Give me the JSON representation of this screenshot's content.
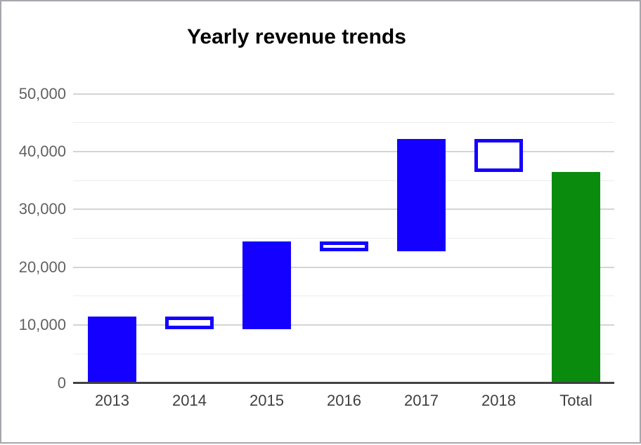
{
  "frame": {
    "border_color": "#a7a7ad",
    "background": "#ffffff"
  },
  "chart_data": {
    "type": "bar",
    "subtype": "waterfall",
    "title": "Yearly revenue trends",
    "title_color": "#000000",
    "xlabel": "",
    "ylabel": "",
    "categories": [
      "2013",
      "2014",
      "2015",
      "2016",
      "2017",
      "2018",
      "Total"
    ],
    "bars": [
      {
        "label": "2013",
        "start": 0,
        "end": 11500,
        "delta": 11500,
        "kind": "increase"
      },
      {
        "label": "2014",
        "start": 11500,
        "end": 9300,
        "delta": -2200,
        "kind": "decrease"
      },
      {
        "label": "2015",
        "start": 9300,
        "end": 24500,
        "delta": 15200,
        "kind": "increase"
      },
      {
        "label": "2016",
        "start": 24500,
        "end": 22800,
        "delta": -1700,
        "kind": "decrease"
      },
      {
        "label": "2017",
        "start": 22800,
        "end": 42200,
        "delta": 19400,
        "kind": "increase"
      },
      {
        "label": "2018",
        "start": 42200,
        "end": 36500,
        "delta": -5700,
        "kind": "decrease"
      },
      {
        "label": "Total",
        "start": 0,
        "end": 36500,
        "delta": 36500,
        "kind": "total"
      }
    ],
    "y_axis": {
      "min": 0,
      "max": 50000,
      "major_step": 10000,
      "minor_step": 5000,
      "ticks": [
        {
          "value": 0,
          "label": "0"
        },
        {
          "value": 10000,
          "label": "10,000"
        },
        {
          "value": 20000,
          "label": "20,000"
        },
        {
          "value": 30000,
          "label": "30,000"
        },
        {
          "value": 40000,
          "label": "40,000"
        },
        {
          "value": 50000,
          "label": "50,000"
        }
      ],
      "label_color": "#616161"
    },
    "x_axis": {
      "label_color": "#3f3f3f"
    },
    "colors": {
      "increase_fill": "#1400ff",
      "decrease_fill": "#ffffff",
      "decrease_border": "#1400ff",
      "total_fill": "#0b8b0e",
      "gridline_major": "#d4d4d4",
      "gridline_minor": "#ececec",
      "baseline": "#424242"
    },
    "legend": "none",
    "grid": true
  }
}
